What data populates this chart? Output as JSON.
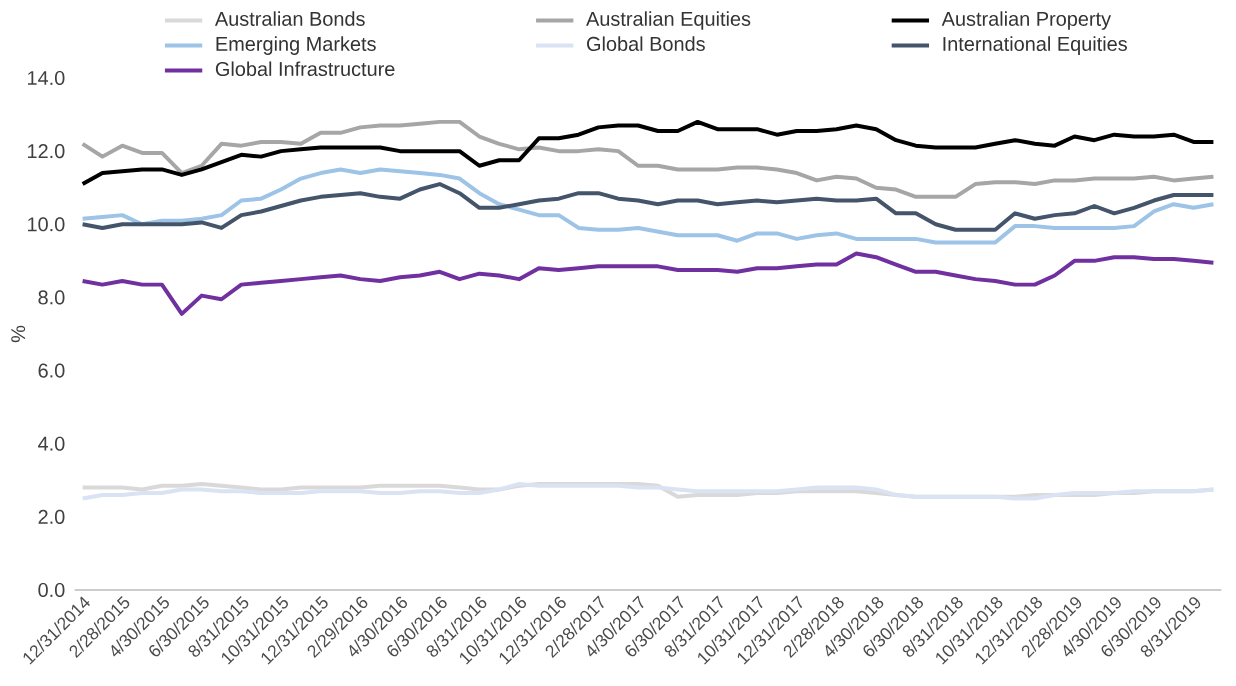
{
  "chart_data": {
    "type": "line",
    "ylabel": "%",
    "categories": [
      "12/31/2014",
      null,
      "2/28/2015",
      null,
      "4/30/2015",
      null,
      "6/30/2015",
      null,
      "8/31/2015",
      null,
      "10/31/2015",
      null,
      "12/31/2015",
      null,
      "2/29/2016",
      null,
      "4/30/2016",
      null,
      "6/30/2016",
      null,
      "8/31/2016",
      null,
      "10/31/2016",
      null,
      "12/31/2016",
      null,
      "2/28/2017",
      null,
      "4/30/2017",
      null,
      "6/30/2017",
      null,
      "8/31/2017",
      null,
      "10/31/2017",
      null,
      "12/31/2017",
      null,
      "2/28/2018",
      null,
      "4/30/2018",
      null,
      "6/30/2018",
      null,
      "8/31/2018",
      null,
      "10/31/2018",
      null,
      "12/31/2018",
      null,
      "2/28/2019",
      null,
      "4/30/2019",
      null,
      "6/30/2019",
      null,
      "8/31/2019",
      null
    ],
    "series": [
      {
        "name": "Australian Bonds",
        "color": "#d9d9d9",
        "values": [
          2.8,
          2.8,
          2.8,
          2.75,
          2.85,
          2.85,
          2.9,
          2.85,
          2.8,
          2.75,
          2.75,
          2.8,
          2.8,
          2.8,
          2.8,
          2.85,
          2.85,
          2.85,
          2.85,
          2.8,
          2.75,
          2.75,
          2.85,
          2.9,
          2.9,
          2.9,
          2.9,
          2.9,
          2.9,
          2.85,
          2.55,
          2.6,
          2.6,
          2.6,
          2.65,
          2.65,
          2.7,
          2.7,
          2.7,
          2.7,
          2.65,
          2.6,
          2.55,
          2.55,
          2.55,
          2.55,
          2.55,
          2.55,
          2.6,
          2.6,
          2.6,
          2.6,
          2.65,
          2.65,
          2.7,
          2.7,
          2.7,
          2.75
        ]
      },
      {
        "name": "Australian Equities",
        "color": "#a6a6a6",
        "values": [
          12.2,
          11.85,
          12.15,
          11.95,
          11.95,
          11.4,
          11.6,
          12.2,
          12.15,
          12.25,
          12.25,
          12.2,
          12.5,
          12.5,
          12.65,
          12.7,
          12.7,
          12.75,
          12.8,
          12.8,
          12.4,
          12.2,
          12.05,
          12.1,
          12.0,
          12.0,
          12.05,
          12.0,
          11.6,
          11.6,
          11.5,
          11.5,
          11.5,
          11.55,
          11.55,
          11.5,
          11.4,
          11.2,
          11.3,
          11.25,
          11.0,
          10.95,
          10.75,
          10.75,
          10.75,
          11.1,
          11.15,
          11.15,
          11.1,
          11.2,
          11.2,
          11.25,
          11.25,
          11.25,
          11.3,
          11.2,
          11.25,
          11.3
        ]
      },
      {
        "name": "Australian Property",
        "color": "#000000",
        "values": [
          11.1,
          11.4,
          11.45,
          11.5,
          11.5,
          11.35,
          11.5,
          11.7,
          11.9,
          11.85,
          12.0,
          12.05,
          12.1,
          12.1,
          12.1,
          12.1,
          12.0,
          12.0,
          12.0,
          12.0,
          11.6,
          11.75,
          11.75,
          12.35,
          12.35,
          12.45,
          12.65,
          12.7,
          12.7,
          12.55,
          12.55,
          12.8,
          12.6,
          12.6,
          12.6,
          12.45,
          12.55,
          12.55,
          12.6,
          12.7,
          12.6,
          12.3,
          12.15,
          12.1,
          12.1,
          12.1,
          12.2,
          12.3,
          12.2,
          12.15,
          12.4,
          12.3,
          12.45,
          12.4,
          12.4,
          12.45,
          12.25,
          12.25
        ]
      },
      {
        "name": "Emerging Markets",
        "color": "#9dc3e6",
        "values": [
          10.15,
          10.2,
          10.25,
          10.0,
          10.1,
          10.1,
          10.15,
          10.25,
          10.65,
          10.7,
          10.95,
          11.25,
          11.4,
          11.5,
          11.4,
          11.5,
          11.45,
          11.4,
          11.35,
          11.25,
          10.85,
          10.55,
          10.4,
          10.25,
          10.25,
          9.9,
          9.85,
          9.85,
          9.9,
          9.8,
          9.7,
          9.7,
          9.7,
          9.55,
          9.75,
          9.75,
          9.6,
          9.7,
          9.75,
          9.6,
          9.6,
          9.6,
          9.6,
          9.5,
          9.5,
          9.5,
          9.5,
          9.95,
          9.95,
          9.9,
          9.9,
          9.9,
          9.9,
          9.95,
          10.35,
          10.55,
          10.45,
          10.55
        ]
      },
      {
        "name": "Global Bonds",
        "color": "#dae3f3",
        "values": [
          2.5,
          2.6,
          2.6,
          2.65,
          2.65,
          2.75,
          2.75,
          2.7,
          2.7,
          2.65,
          2.65,
          2.65,
          2.7,
          2.7,
          2.7,
          2.65,
          2.65,
          2.7,
          2.7,
          2.65,
          2.65,
          2.75,
          2.9,
          2.85,
          2.85,
          2.85,
          2.85,
          2.85,
          2.8,
          2.8,
          2.75,
          2.7,
          2.7,
          2.7,
          2.7,
          2.7,
          2.75,
          2.8,
          2.8,
          2.8,
          2.75,
          2.6,
          2.55,
          2.55,
          2.55,
          2.55,
          2.55,
          2.5,
          2.5,
          2.6,
          2.65,
          2.65,
          2.65,
          2.7,
          2.7,
          2.7,
          2.7,
          2.75
        ]
      },
      {
        "name": "International Equities",
        "color": "#44546a",
        "values": [
          10.0,
          9.9,
          10.0,
          10.0,
          10.0,
          10.0,
          10.05,
          9.9,
          10.25,
          10.35,
          10.5,
          10.65,
          10.75,
          10.8,
          10.85,
          10.75,
          10.7,
          10.95,
          11.1,
          10.85,
          10.45,
          10.45,
          10.55,
          10.65,
          10.7,
          10.85,
          10.85,
          10.7,
          10.65,
          10.55,
          10.65,
          10.65,
          10.55,
          10.6,
          10.65,
          10.6,
          10.65,
          10.7,
          10.65,
          10.65,
          10.7,
          10.3,
          10.3,
          10.0,
          9.85,
          9.85,
          9.85,
          10.3,
          10.15,
          10.25,
          10.3,
          10.5,
          10.3,
          10.45,
          10.65,
          10.8,
          10.8,
          10.8
        ]
      },
      {
        "name": "Global Infrastructure",
        "color": "#7030a0",
        "values": [
          8.45,
          8.35,
          8.45,
          8.35,
          8.35,
          7.55,
          8.05,
          7.95,
          8.35,
          8.4,
          8.45,
          8.5,
          8.55,
          8.6,
          8.5,
          8.45,
          8.55,
          8.6,
          8.7,
          8.5,
          8.65,
          8.6,
          8.5,
          8.8,
          8.75,
          8.8,
          8.85,
          8.85,
          8.85,
          8.85,
          8.75,
          8.75,
          8.75,
          8.7,
          8.8,
          8.8,
          8.85,
          8.9,
          8.9,
          9.2,
          9.1,
          8.9,
          8.7,
          8.7,
          8.6,
          8.5,
          8.45,
          8.35,
          8.35,
          8.6,
          9.0,
          9.0,
          9.1,
          9.1,
          9.05,
          9.05,
          9.0,
          8.95
        ]
      }
    ],
    "ylim": [
      0,
      14
    ],
    "yticks": [
      {
        "value": 0,
        "label": "0.0"
      },
      {
        "value": 2,
        "label": "2.0"
      },
      {
        "value": 4,
        "label": "4.0"
      },
      {
        "value": 6,
        "label": "6.0"
      },
      {
        "value": 8,
        "label": "8.0"
      },
      {
        "value": 10,
        "label": "10.0"
      },
      {
        "value": 12,
        "label": "12.0"
      },
      {
        "value": 14,
        "label": "14.0"
      }
    ],
    "legend": "top"
  }
}
